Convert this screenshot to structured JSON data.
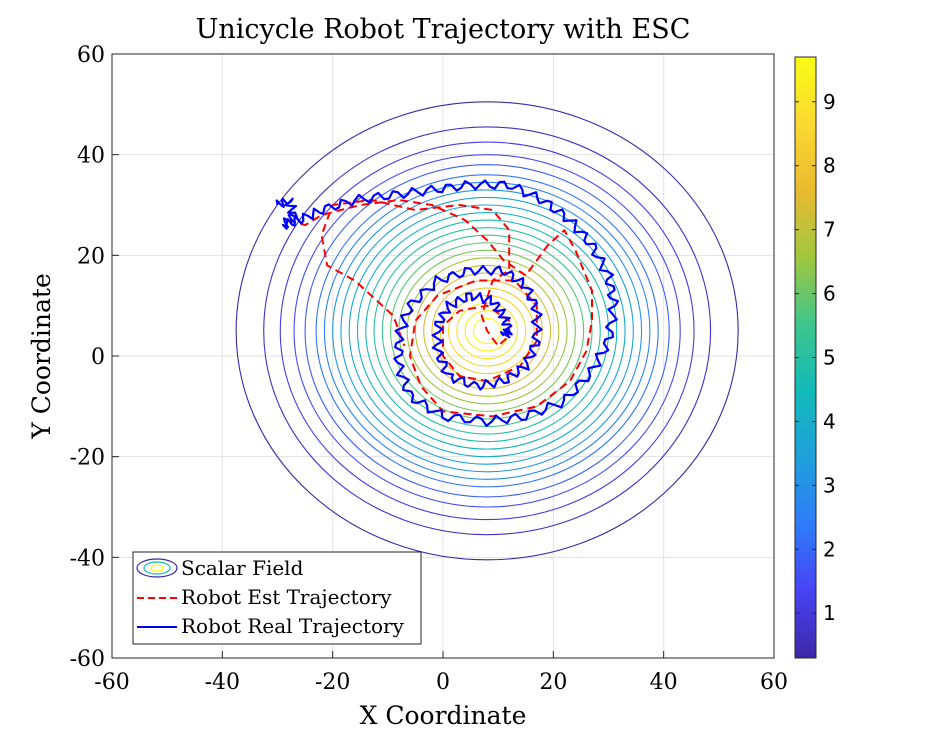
{
  "chart_data": {
    "type": "contour",
    "title": "Unicycle Robot Trajectory with ESC",
    "xlabel": "X Coordinate",
    "ylabel": "Y Coordinate",
    "xlim": [
      -60,
      60
    ],
    "ylim": [
      -60,
      60
    ],
    "xticks": [
      "-60",
      "-40",
      "-20",
      "0",
      "20",
      "40",
      "60"
    ],
    "yticks": [
      "60",
      "40",
      "20",
      "0",
      "-20",
      "-40",
      "-60"
    ],
    "grid": true,
    "legend_position": "bottom-left",
    "legend": [
      {
        "label": "Scalar Field",
        "style": "contour"
      },
      {
        "label": "Robot Est Trajectory",
        "style": "dashed",
        "color": "#ff0000"
      },
      {
        "label": "Robot Real Trajectory",
        "style": "solid",
        "color": "#0000ff"
      }
    ],
    "scalar_field": {
      "center": [
        8,
        5
      ],
      "radii": [
        2.5,
        4,
        5.5,
        7,
        8.5,
        10,
        11.5,
        13,
        14.5,
        16,
        17.5,
        19,
        20.5,
        22,
        23.5,
        25,
        26.5,
        28,
        29.5,
        31,
        33,
        35,
        37.5,
        40.5,
        45.5
      ],
      "colorbar": {
        "min": 0.3,
        "max": 9.7,
        "ticks": [
          "1",
          "2",
          "3",
          "4",
          "5",
          "6",
          "7",
          "8",
          "9"
        ]
      },
      "colormap": [
        "#3e26a8",
        "#4743f4",
        "#2f7cfa",
        "#1fa0db",
        "#12bab9",
        "#3ec68c",
        "#a0c73e",
        "#e9ba30",
        "#fbd931",
        "#f9fb15"
      ]
    },
    "series": [
      {
        "name": "Robot Est Trajectory",
        "color": "#ff0000",
        "points": [
          [
            -28,
            27
          ],
          [
            -25,
            26
          ],
          [
            -22,
            28
          ],
          [
            -15,
            30
          ],
          [
            -8,
            31
          ],
          [
            -2,
            30
          ],
          [
            4,
            27
          ],
          [
            8,
            23
          ],
          [
            11,
            19
          ],
          [
            15,
            16
          ],
          [
            19,
            22
          ],
          [
            22,
            25
          ],
          [
            24,
            21
          ],
          [
            27,
            13
          ],
          [
            27,
            7
          ],
          [
            26,
            1
          ],
          [
            23,
            -5
          ],
          [
            17,
            -10
          ],
          [
            9,
            -12
          ],
          [
            0,
            -11
          ],
          [
            -4,
            -6
          ],
          [
            -6,
            0
          ],
          [
            -5,
            7
          ],
          [
            -1,
            12
          ],
          [
            6,
            15
          ],
          [
            13,
            15
          ],
          [
            17,
            10
          ],
          [
            17,
            3
          ],
          [
            14,
            -2
          ],
          [
            8,
            -5
          ],
          [
            3,
            -4
          ],
          [
            0,
            0
          ],
          [
            0,
            6
          ],
          [
            3,
            9
          ],
          [
            8,
            10
          ],
          [
            12,
            7
          ],
          [
            12,
            4
          ],
          [
            10,
            2
          ],
          [
            8,
            5
          ],
          [
            7,
            8
          ],
          [
            9,
            15
          ],
          [
            12,
            17
          ],
          [
            12,
            25
          ],
          [
            9,
            29
          ],
          [
            3,
            30
          ],
          [
            -5,
            29
          ],
          [
            -13,
            31
          ],
          [
            -20,
            30
          ],
          [
            -22,
            24
          ],
          [
            -21,
            18
          ],
          [
            -16,
            15
          ],
          [
            -9,
            8
          ],
          [
            -7,
            2
          ]
        ]
      },
      {
        "name": "Robot Real Trajectory",
        "color": "#0000ff",
        "points": [
          [
            -30,
            30
          ],
          [
            -28,
            31
          ],
          [
            -27,
            28
          ],
          [
            -29,
            26
          ],
          [
            -26,
            27
          ],
          [
            -22,
            29
          ],
          [
            -16,
            31
          ],
          [
            -9,
            32
          ],
          [
            -2,
            33
          ],
          [
            5,
            34
          ],
          [
            12,
            34
          ],
          [
            18,
            31
          ],
          [
            23,
            27
          ],
          [
            27,
            22
          ],
          [
            30,
            16
          ],
          [
            31,
            10
          ],
          [
            30,
            3
          ],
          [
            27,
            -3
          ],
          [
            22,
            -9
          ],
          [
            15,
            -12
          ],
          [
            8,
            -13
          ],
          [
            0,
            -12
          ],
          [
            -6,
            -8
          ],
          [
            -8,
            -2
          ],
          [
            -8,
            4
          ],
          [
            -6,
            10
          ],
          [
            -1,
            15
          ],
          [
            5,
            17
          ],
          [
            11,
            17
          ],
          [
            15,
            14
          ],
          [
            17,
            9
          ],
          [
            17,
            3
          ],
          [
            15,
            -2
          ],
          [
            11,
            -5
          ],
          [
            6,
            -6
          ],
          [
            1,
            -4
          ],
          [
            -1,
            1
          ],
          [
            -1,
            6
          ],
          [
            1,
            10
          ],
          [
            5,
            12
          ],
          [
            9,
            11
          ],
          [
            11,
            8
          ],
          [
            12,
            5
          ],
          [
            11,
            4
          ]
        ]
      }
    ]
  }
}
